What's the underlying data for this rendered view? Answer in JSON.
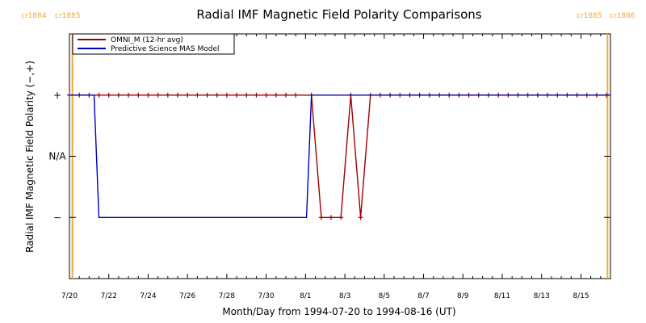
{
  "chart_data": {
    "type": "line",
    "title": "Radial IMF Magnetic Field Polarity Comparisons",
    "xlabel": "Month/Day from 1994-07-20 to 1994-08-16 (UT)",
    "ylabel": "Radial IMF Magnetic Field Polarity (−,+)",
    "xlim": [
      0,
      27.5
    ],
    "ylim": [
      -2,
      2
    ],
    "x_ticks": [
      {
        "x": 0,
        "label": "7/20"
      },
      {
        "x": 2,
        "label": "7/22"
      },
      {
        "x": 4,
        "label": "7/24"
      },
      {
        "x": 6,
        "label": "7/26"
      },
      {
        "x": 8,
        "label": "7/28"
      },
      {
        "x": 10,
        "label": "7/30"
      },
      {
        "x": 12,
        "label": "8/1"
      },
      {
        "x": 14,
        "label": "8/3"
      },
      {
        "x": 16,
        "label": "8/5"
      },
      {
        "x": 18,
        "label": "8/7"
      },
      {
        "x": 20,
        "label": "8/9"
      },
      {
        "x": 22,
        "label": "8/11"
      },
      {
        "x": 24,
        "label": "8/13"
      },
      {
        "x": 26,
        "label": "8/15"
      }
    ],
    "y_ticks": [
      {
        "y": 1,
        "label": "+"
      },
      {
        "y": 0,
        "label": "N/A"
      },
      {
        "y": -1,
        "label": "−"
      }
    ],
    "cr_boundaries": [
      {
        "x": 0.15,
        "left_label": "cr1884",
        "right_label": "cr1885",
        "side": "left"
      },
      {
        "x": 27.35,
        "left_label": "cr1885",
        "right_label": "cr1886",
        "side": "right"
      }
    ],
    "legend": {
      "placement": "top-left"
    },
    "series": [
      {
        "name": "OMNI_M (12-hr avg)",
        "color": "#a00000",
        "marker": "plus",
        "x": [
          0,
          0.5,
          1,
          1.5,
          2,
          2.5,
          3,
          3.5,
          4,
          4.5,
          5,
          5.5,
          6,
          6.5,
          7,
          7.5,
          8,
          8.5,
          9,
          9.5,
          10,
          10.5,
          11,
          11.5,
          12.3,
          12.8,
          13.3,
          13.8,
          14.3,
          14.8,
          15.3,
          15.8,
          16.3,
          16.8,
          17.3,
          17.8,
          18.3,
          18.8,
          19.3,
          19.8,
          20.3,
          20.8,
          21.3,
          21.8,
          22.3,
          22.8,
          23.3,
          23.8,
          24.3,
          24.8,
          25.3,
          25.8,
          26.3,
          26.8,
          27.3
        ],
        "y": [
          1,
          1,
          1,
          1,
          1,
          1,
          1,
          1,
          1,
          1,
          1,
          1,
          1,
          1,
          1,
          1,
          1,
          1,
          1,
          1,
          1,
          1,
          1,
          1,
          1,
          -1,
          -1,
          -1,
          1,
          -1,
          1,
          1,
          1,
          1,
          1,
          1,
          1,
          1,
          1,
          1,
          1,
          1,
          1,
          1,
          1,
          1,
          1,
          1,
          1,
          1,
          1,
          1,
          1,
          1,
          1
        ]
      },
      {
        "name": "Predictive Science MAS Model",
        "color": "#0000c0",
        "marker": "none",
        "x": [
          0,
          1.25,
          1.5,
          12.05,
          12.3,
          27.5
        ],
        "y": [
          1,
          1,
          -1,
          -1,
          1,
          1
        ]
      }
    ],
    "colors": {
      "cr_line": "#f4a53b",
      "axes": "#000000"
    }
  }
}
